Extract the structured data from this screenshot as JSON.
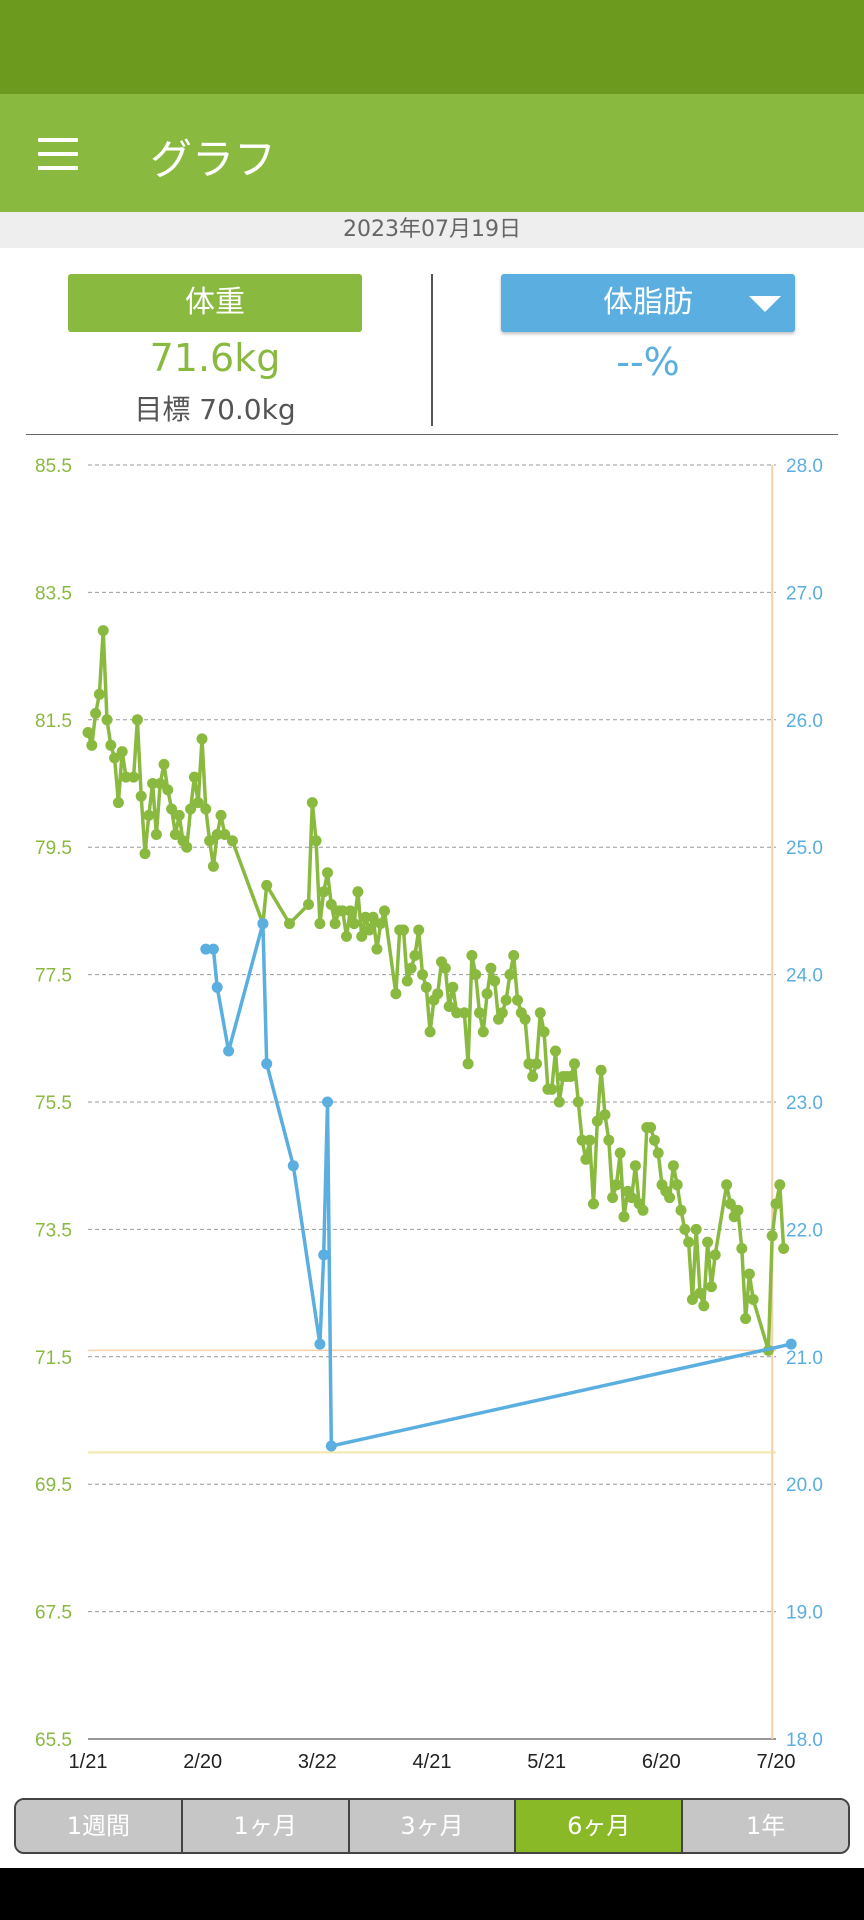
{
  "app_bar": {
    "title": "グラフ"
  },
  "date": "2023年07月19日",
  "metrics": {
    "weight_label": "体重",
    "weight_value": "71.6kg",
    "goal": "目標 70.0kg",
    "fat_label": "体脂肪",
    "fat_value": "--%"
  },
  "colors": {
    "weight": "#8ab940",
    "fat": "#5aaee0",
    "app_bar": "#8ab940",
    "status_bar": "#6b9a1e",
    "active_tab": "#8ab928"
  },
  "range_tabs": [
    {
      "label": "1週間",
      "active": false
    },
    {
      "label": "1ヶ月",
      "active": false
    },
    {
      "label": "3ヶ月",
      "active": false
    },
    {
      "label": "6ヶ月",
      "active": true
    },
    {
      "label": "1年",
      "active": false
    }
  ],
  "chart_data": {
    "type": "line",
    "title": "",
    "x_ticks": [
      "1/21",
      "2/20",
      "3/22",
      "4/21",
      "5/21",
      "6/20",
      "7/20"
    ],
    "x_range": [
      "2023-01-21",
      "2023-07-21"
    ],
    "y_left": {
      "ticks": [
        "85.5",
        "83.5",
        "81.5",
        "79.5",
        "77.5",
        "75.5",
        "73.5",
        "71.5",
        "69.5",
        "67.5",
        "65.5"
      ],
      "range": [
        65.5,
        85.5
      ]
    },
    "y_right": {
      "ticks": [
        "28.0",
        "27.0",
        "26.0",
        "25.0",
        "24.0",
        "23.0",
        "22.0",
        "21.0",
        "20.0",
        "19.0",
        "18.0"
      ],
      "range": [
        18.0,
        28.0
      ]
    },
    "grid": true,
    "reference_lines": {
      "weight_goal": 70.0,
      "current_weight": 71.6,
      "today": "2023-07-20"
    },
    "series": [
      {
        "axis": "left",
        "color": "#8ab940",
        "points": [
          [
            "2023-01-21",
            81.3
          ],
          [
            "2023-01-22",
            81.1
          ],
          [
            "2023-01-23",
            81.6
          ],
          [
            "2023-01-24",
            81.9
          ],
          [
            "2023-01-25",
            82.9
          ],
          [
            "2023-01-26",
            81.5
          ],
          [
            "2023-01-27",
            81.1
          ],
          [
            "2023-01-28",
            80.9
          ],
          [
            "2023-01-29",
            80.2
          ],
          [
            "2023-01-30",
            81.0
          ],
          [
            "2023-01-31",
            80.6
          ],
          [
            "2023-02-02",
            80.6
          ],
          [
            "2023-02-03",
            81.5
          ],
          [
            "2023-02-04",
            80.3
          ],
          [
            "2023-02-05",
            79.4
          ],
          [
            "2023-02-06",
            80.0
          ],
          [
            "2023-02-07",
            80.5
          ],
          [
            "2023-02-08",
            79.7
          ],
          [
            "2023-02-09",
            80.5
          ],
          [
            "2023-02-10",
            80.8
          ],
          [
            "2023-02-11",
            80.4
          ],
          [
            "2023-02-12",
            80.1
          ],
          [
            "2023-02-13",
            79.7
          ],
          [
            "2023-02-14",
            80.0
          ],
          [
            "2023-02-15",
            79.6
          ],
          [
            "2023-02-16",
            79.5
          ],
          [
            "2023-02-17",
            80.1
          ],
          [
            "2023-02-18",
            80.6
          ],
          [
            "2023-02-19",
            80.2
          ],
          [
            "2023-02-20",
            81.2
          ],
          [
            "2023-02-21",
            80.1
          ],
          [
            "2023-02-22",
            79.6
          ],
          [
            "2023-02-23",
            79.2
          ],
          [
            "2023-02-24",
            79.7
          ],
          [
            "2023-02-25",
            80.0
          ],
          [
            "2023-02-26",
            79.7
          ],
          [
            "2023-02-28",
            79.6
          ],
          [
            "2023-03-08",
            78.3
          ],
          [
            "2023-03-09",
            78.9
          ],
          [
            "2023-03-15",
            78.3
          ],
          [
            "2023-03-20",
            78.6
          ],
          [
            "2023-03-21",
            80.2
          ],
          [
            "2023-03-22",
            79.6
          ],
          [
            "2023-03-23",
            78.3
          ],
          [
            "2023-03-24",
            78.8
          ],
          [
            "2023-03-25",
            79.1
          ],
          [
            "2023-03-26",
            78.6
          ],
          [
            "2023-03-27",
            78.3
          ],
          [
            "2023-03-28",
            78.5
          ],
          [
            "2023-03-29",
            78.5
          ],
          [
            "2023-03-30",
            78.1
          ],
          [
            "2023-03-31",
            78.5
          ],
          [
            "2023-04-01",
            78.3
          ],
          [
            "2023-04-02",
            78.8
          ],
          [
            "2023-04-03",
            78.1
          ],
          [
            "2023-04-04",
            78.4
          ],
          [
            "2023-04-05",
            78.2
          ],
          [
            "2023-04-06",
            78.4
          ],
          [
            "2023-04-07",
            77.9
          ],
          [
            "2023-04-08",
            78.3
          ],
          [
            "2023-04-09",
            78.5
          ],
          [
            "2023-04-12",
            77.2
          ],
          [
            "2023-04-13",
            78.2
          ],
          [
            "2023-04-14",
            78.2
          ],
          [
            "2023-04-15",
            77.4
          ],
          [
            "2023-04-16",
            77.6
          ],
          [
            "2023-04-17",
            77.8
          ],
          [
            "2023-04-18",
            78.2
          ],
          [
            "2023-04-19",
            77.5
          ],
          [
            "2023-04-20",
            77.3
          ],
          [
            "2023-04-21",
            76.6
          ],
          [
            "2023-04-22",
            77.1
          ],
          [
            "2023-04-23",
            77.2
          ],
          [
            "2023-04-24",
            77.7
          ],
          [
            "2023-04-25",
            77.6
          ],
          [
            "2023-04-26",
            77.0
          ],
          [
            "2023-04-27",
            77.3
          ],
          [
            "2023-04-28",
            76.9
          ],
          [
            "2023-04-30",
            76.9
          ],
          [
            "2023-05-01",
            76.1
          ],
          [
            "2023-05-02",
            77.8
          ],
          [
            "2023-05-03",
            77.5
          ],
          [
            "2023-05-04",
            76.9
          ],
          [
            "2023-05-05",
            76.6
          ],
          [
            "2023-05-06",
            77.2
          ],
          [
            "2023-05-07",
            77.6
          ],
          [
            "2023-05-08",
            77.4
          ],
          [
            "2023-05-09",
            76.8
          ],
          [
            "2023-05-10",
            76.9
          ],
          [
            "2023-05-11",
            77.1
          ],
          [
            "2023-05-12",
            77.5
          ],
          [
            "2023-05-13",
            77.8
          ],
          [
            "2023-05-14",
            77.1
          ],
          [
            "2023-05-15",
            76.9
          ],
          [
            "2023-05-16",
            76.8
          ],
          [
            "2023-05-17",
            76.1
          ],
          [
            "2023-05-18",
            75.9
          ],
          [
            "2023-05-19",
            76.1
          ],
          [
            "2023-05-20",
            76.9
          ],
          [
            "2023-05-21",
            76.6
          ],
          [
            "2023-05-22",
            75.7
          ],
          [
            "2023-05-23",
            75.7
          ],
          [
            "2023-05-24",
            76.3
          ],
          [
            "2023-05-25",
            75.5
          ],
          [
            "2023-05-26",
            75.9
          ],
          [
            "2023-05-27",
            75.9
          ],
          [
            "2023-05-28",
            75.9
          ],
          [
            "2023-05-29",
            76.1
          ],
          [
            "2023-05-30",
            75.5
          ],
          [
            "2023-05-31",
            74.9
          ],
          [
            "2023-06-01",
            74.6
          ],
          [
            "2023-06-02",
            74.9
          ],
          [
            "2023-06-03",
            73.9
          ],
          [
            "2023-06-04",
            75.2
          ],
          [
            "2023-06-05",
            76.0
          ],
          [
            "2023-06-06",
            75.3
          ],
          [
            "2023-06-07",
            74.9
          ],
          [
            "2023-06-08",
            74.0
          ],
          [
            "2023-06-09",
            74.2
          ],
          [
            "2023-06-10",
            74.7
          ],
          [
            "2023-06-11",
            73.7
          ],
          [
            "2023-06-12",
            74.1
          ],
          [
            "2023-06-13",
            74.0
          ],
          [
            "2023-06-14",
            74.5
          ],
          [
            "2023-06-15",
            73.9
          ],
          [
            "2023-06-16",
            73.8
          ],
          [
            "2023-06-17",
            75.1
          ],
          [
            "2023-06-18",
            75.1
          ],
          [
            "2023-06-19",
            74.9
          ],
          [
            "2023-06-20",
            74.7
          ],
          [
            "2023-06-21",
            74.2
          ],
          [
            "2023-06-22",
            74.1
          ],
          [
            "2023-06-23",
            74.0
          ],
          [
            "2023-06-24",
            74.5
          ],
          [
            "2023-06-25",
            74.2
          ],
          [
            "2023-06-26",
            73.8
          ],
          [
            "2023-06-27",
            73.5
          ],
          [
            "2023-06-28",
            73.3
          ],
          [
            "2023-06-29",
            72.4
          ],
          [
            "2023-06-30",
            73.5
          ],
          [
            "2023-07-01",
            72.5
          ],
          [
            "2023-07-02",
            72.3
          ],
          [
            "2023-07-03",
            73.3
          ],
          [
            "2023-07-04",
            72.6
          ],
          [
            "2023-07-05",
            73.1
          ],
          [
            "2023-07-08",
            74.2
          ],
          [
            "2023-07-09",
            73.9
          ],
          [
            "2023-07-10",
            73.7
          ],
          [
            "2023-07-11",
            73.8
          ],
          [
            "2023-07-12",
            73.2
          ],
          [
            "2023-07-13",
            72.1
          ],
          [
            "2023-07-14",
            72.8
          ],
          [
            "2023-07-15",
            72.4
          ],
          [
            "2023-07-19",
            71.6
          ],
          [
            "2023-07-20",
            73.4
          ],
          [
            "2023-07-21",
            73.9
          ],
          [
            "2023-07-22",
            74.2
          ],
          [
            "2023-07-23",
            73.2
          ]
        ]
      },
      {
        "axis": "right",
        "color": "#5aaee0",
        "points": [
          [
            "2023-02-21",
            24.2
          ],
          [
            "2023-02-23",
            24.2
          ],
          [
            "2023-02-24",
            23.9
          ],
          [
            "2023-02-27",
            23.4
          ],
          [
            "2023-03-08",
            24.4
          ],
          [
            "2023-03-09",
            23.3
          ],
          [
            "2023-03-16",
            22.5
          ],
          [
            "2023-03-23",
            21.1
          ],
          [
            "2023-03-24",
            21.8
          ],
          [
            "2023-03-25",
            23.0
          ],
          [
            "2023-03-26",
            20.3
          ],
          [
            "2023-07-25",
            21.1
          ]
        ]
      }
    ]
  }
}
